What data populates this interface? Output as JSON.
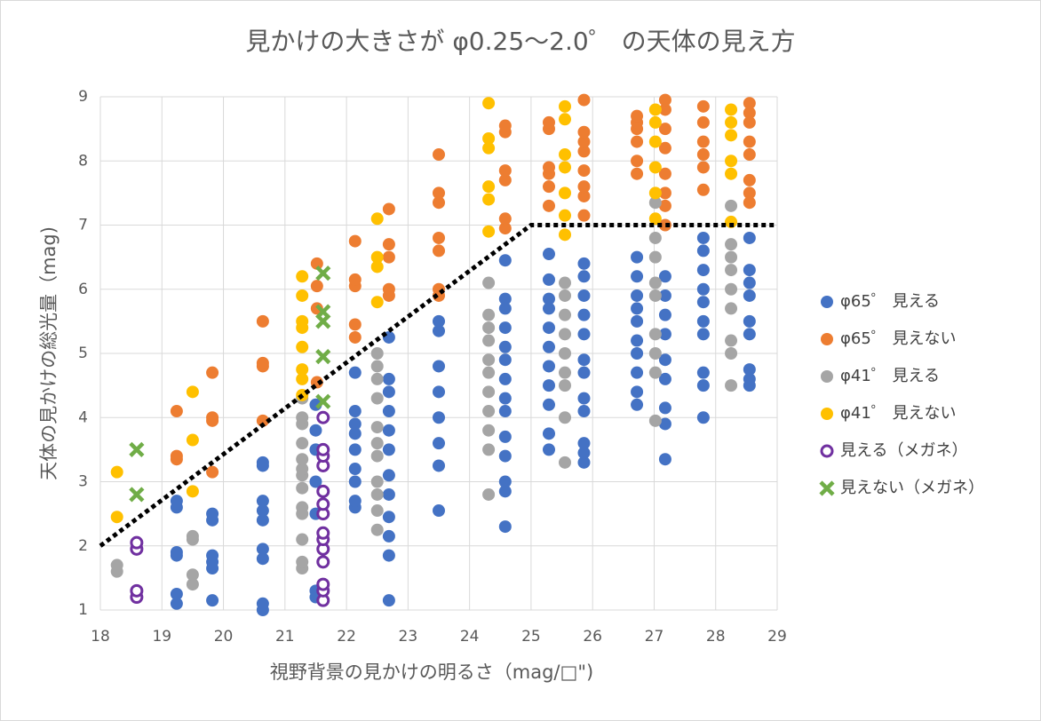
{
  "chart_data": {
    "type": "scatter",
    "title": "見かけの大きさが φ0.25〜2.0゜ の天体の見え方",
    "x_label": "視野背景の見かけの明るさ（mag/□\")",
    "y_label": "天体の見かけの総光量（mag)",
    "xlim": [
      18,
      29
    ],
    "xticks": [
      18,
      19,
      20,
      21,
      22,
      23,
      24,
      25,
      26,
      27,
      28,
      29
    ],
    "ylim": [
      1,
      9
    ],
    "yticks": [
      1,
      2,
      3,
      4,
      5,
      6,
      7,
      8,
      9
    ],
    "grid": true,
    "legend": "right",
    "series": [
      {
        "name": "φ65゜ 見える",
        "color": "#4472c4",
        "marker": "circle",
        "x": [
          19.24,
          19.24,
          19.24,
          19.24,
          19.24,
          19.24,
          19.82,
          19.82,
          19.82,
          19.82,
          19.82,
          19.82,
          20.64,
          20.64,
          20.64,
          20.64,
          20.64,
          20.64,
          20.64,
          20.64,
          20.64,
          21.5,
          21.5,
          21.5,
          21.5,
          21.5,
          21.5,
          21.5,
          22.14,
          22.14,
          22.14,
          22.14,
          22.14,
          22.14,
          22.14,
          22.14,
          22.14,
          22.69,
          22.69,
          22.69,
          22.69,
          22.69,
          22.69,
          22.69,
          22.69,
          22.69,
          22.69,
          22.69,
          22.69,
          23.5,
          23.5,
          23.5,
          23.5,
          23.5,
          23.5,
          23.5,
          23.5,
          24.58,
          24.58,
          24.58,
          24.58,
          24.58,
          24.58,
          24.58,
          24.58,
          24.58,
          24.58,
          24.58,
          24.58,
          24.58,
          24.58,
          25.29,
          25.29,
          25.29,
          25.29,
          25.29,
          25.29,
          25.29,
          25.29,
          25.29,
          25.29,
          25.29,
          25.86,
          25.86,
          25.86,
          25.86,
          25.86,
          25.86,
          25.86,
          25.86,
          25.86,
          25.86,
          25.86,
          25.86,
          26.72,
          26.72,
          26.72,
          26.72,
          26.72,
          26.72,
          26.72,
          26.72,
          26.72,
          26.72,
          27.18,
          27.18,
          27.18,
          27.18,
          27.18,
          27.18,
          27.18,
          27.18,
          27.18,
          27.8,
          27.8,
          27.8,
          27.8,
          27.8,
          27.8,
          27.8,
          27.8,
          27.8,
          27.8,
          28.55,
          28.55,
          28.55,
          28.55,
          28.55,
          28.55,
          28.55,
          28.55,
          28.55
        ],
        "values": [
          1.1,
          1.25,
          1.85,
          1.9,
          2.6,
          2.7,
          1.15,
          1.65,
          1.75,
          1.85,
          2.4,
          2.5,
          1.0,
          1.1,
          1.8,
          1.95,
          2.4,
          2.55,
          2.7,
          3.25,
          3.3,
          1.2,
          1.3,
          2.5,
          3.0,
          3.5,
          3.8,
          4.2,
          2.6,
          2.7,
          3.0,
          3.2,
          3.5,
          3.75,
          3.9,
          4.1,
          4.7,
          1.15,
          1.85,
          2.15,
          2.45,
          2.8,
          3.1,
          3.5,
          3.8,
          4.1,
          4.4,
          4.6,
          5.25,
          2.55,
          3.25,
          3.6,
          4.0,
          4.4,
          4.8,
          5.35,
          5.5,
          2.3,
          2.85,
          3.0,
          3.4,
          3.7,
          4.1,
          4.3,
          4.6,
          4.9,
          5.1,
          5.4,
          5.7,
          5.85,
          6.45,
          3.5,
          3.75,
          4.2,
          4.5,
          4.8,
          5.1,
          5.4,
          5.7,
          5.85,
          6.15,
          6.55,
          3.3,
          3.45,
          3.6,
          4.1,
          4.3,
          4.7,
          4.9,
          5.3,
          5.6,
          5.9,
          6.2,
          6.4,
          4.2,
          4.4,
          4.7,
          5.0,
          5.2,
          5.5,
          5.7,
          5.9,
          6.2,
          6.5,
          3.35,
          3.9,
          4.15,
          4.6,
          4.9,
          5.3,
          5.6,
          5.9,
          6.2,
          4.0,
          4.5,
          4.7,
          5.3,
          5.5,
          5.8,
          6.0,
          6.3,
          6.6,
          6.8,
          4.5,
          4.6,
          4.75,
          5.3,
          5.5,
          5.9,
          6.1,
          6.3,
          6.8
        ]
      },
      {
        "name": "φ65゜ 見えない",
        "color": "#ed7d31",
        "marker": "circle",
        "x": [
          19.24,
          19.24,
          19.24,
          19.82,
          19.82,
          19.82,
          19.82,
          20.64,
          20.64,
          20.64,
          20.64,
          21.52,
          21.52,
          21.52,
          21.52,
          22.14,
          22.14,
          22.14,
          22.14,
          22.14,
          22.69,
          22.69,
          22.69,
          22.69,
          22.69,
          23.5,
          23.5,
          23.5,
          23.5,
          23.5,
          23.5,
          23.5,
          24.58,
          24.58,
          24.58,
          24.58,
          24.58,
          24.58,
          25.29,
          25.29,
          25.29,
          25.29,
          25.29,
          25.29,
          25.86,
          25.86,
          25.86,
          25.86,
          25.86,
          25.86,
          25.86,
          25.86,
          26.72,
          26.72,
          26.72,
          26.72,
          26.72,
          26.72,
          27.18,
          27.18,
          27.18,
          27.18,
          27.18,
          27.18,
          27.18,
          27.18,
          27.8,
          27.8,
          27.8,
          27.8,
          27.8,
          27.8,
          28.55,
          28.55,
          28.55,
          28.55,
          28.55,
          28.55,
          28.55,
          28.55
        ],
        "values": [
          3.35,
          3.4,
          4.1,
          3.15,
          3.95,
          4.0,
          4.7,
          3.95,
          4.8,
          4.85,
          5.5,
          4.55,
          5.7,
          6.05,
          6.4,
          5.25,
          5.45,
          6.05,
          6.15,
          6.75,
          5.9,
          6.0,
          6.5,
          6.7,
          7.25,
          5.9,
          6.0,
          6.6,
          6.8,
          7.35,
          7.5,
          8.1,
          6.95,
          7.1,
          7.7,
          7.85,
          8.45,
          8.55,
          7.3,
          7.6,
          7.8,
          7.9,
          8.5,
          8.6,
          7.15,
          7.45,
          7.6,
          7.85,
          8.15,
          8.3,
          8.45,
          8.95,
          7.8,
          8.0,
          8.3,
          8.5,
          8.6,
          8.7,
          7.0,
          7.3,
          7.5,
          7.8,
          8.2,
          8.5,
          8.8,
          8.95,
          7.55,
          7.9,
          8.1,
          8.3,
          8.6,
          8.85,
          7.35,
          7.5,
          7.7,
          8.1,
          8.3,
          8.6,
          8.75,
          8.9
        ]
      },
      {
        "name": "φ41゜ 見える",
        "color": "#a5a5a5",
        "marker": "circle",
        "x": [
          18.27,
          18.27,
          19.5,
          19.5,
          19.5,
          19.5,
          21.28,
          21.28,
          21.28,
          21.28,
          21.28,
          21.28,
          21.28,
          21.28,
          21.28,
          21.28,
          21.28,
          21.28,
          21.28,
          22.5,
          22.5,
          22.5,
          22.5,
          22.5,
          22.5,
          22.5,
          22.5,
          22.5,
          22.5,
          22.5,
          24.31,
          24.31,
          24.31,
          24.31,
          24.31,
          24.31,
          24.31,
          24.31,
          24.31,
          24.31,
          24.31,
          25.55,
          25.55,
          25.55,
          25.55,
          25.55,
          25.55,
          25.55,
          25.55,
          25.55,
          27.02,
          27.02,
          27.02,
          27.02,
          27.02,
          27.02,
          27.02,
          27.02,
          27.02,
          28.25,
          28.25,
          28.25,
          28.25,
          28.25,
          28.25,
          28.25,
          28.25,
          28.25
        ],
        "values": [
          1.6,
          1.7,
          1.4,
          1.55,
          2.1,
          2.15,
          1.65,
          1.75,
          2.1,
          2.5,
          2.6,
          2.9,
          3.1,
          3.2,
          3.35,
          3.6,
          3.9,
          4.0,
          4.3,
          2.25,
          2.55,
          2.8,
          3.0,
          3.4,
          3.6,
          3.85,
          4.3,
          4.6,
          4.8,
          5.0,
          2.8,
          3.5,
          3.8,
          4.1,
          4.4,
          4.7,
          4.9,
          5.2,
          5.4,
          5.6,
          6.1,
          3.3,
          4.0,
          4.5,
          4.7,
          5.0,
          5.3,
          5.6,
          5.9,
          6.1,
          3.95,
          4.7,
          5.0,
          5.3,
          5.9,
          6.1,
          6.5,
          6.8,
          7.35,
          4.5,
          5.0,
          5.2,
          5.7,
          6.0,
          6.3,
          6.5,
          6.7,
          7.3
        ]
      },
      {
        "name": "φ41゜ 見えない",
        "color": "#ffc000",
        "marker": "circle",
        "x": [
          18.27,
          18.27,
          19.5,
          19.5,
          19.5,
          21.28,
          21.28,
          21.28,
          21.28,
          21.28,
          21.28,
          21.28,
          21.28,
          22.5,
          22.5,
          22.5,
          22.5,
          24.31,
          24.31,
          24.31,
          24.31,
          24.31,
          24.31,
          25.55,
          25.55,
          25.55,
          25.55,
          25.55,
          25.55,
          25.55,
          27.02,
          27.02,
          27.02,
          27.02,
          27.02,
          27.02,
          28.25,
          28.25,
          28.25,
          28.25,
          28.25,
          28.25
        ],
        "values": [
          2.45,
          3.15,
          2.85,
          3.65,
          4.4,
          4.35,
          4.6,
          4.75,
          5.1,
          5.4,
          5.5,
          5.9,
          6.2,
          5.8,
          6.35,
          6.5,
          7.1,
          6.9,
          7.4,
          7.6,
          8.2,
          8.35,
          8.9,
          6.85,
          7.15,
          7.5,
          7.9,
          8.1,
          8.65,
          8.85,
          7.1,
          7.5,
          7.9,
          8.3,
          8.6,
          8.8,
          7.05,
          7.8,
          8.0,
          8.4,
          8.6,
          8.8
        ]
      },
      {
        "name": "見える（メガネ）",
        "color": "#7030a0",
        "marker": "ring",
        "x": [
          18.59,
          18.59,
          18.59,
          18.59,
          21.62,
          21.62,
          21.62,
          21.62,
          21.62,
          21.62,
          21.62,
          21.62,
          21.62,
          21.62,
          21.62,
          21.62,
          21.62,
          21.62
        ],
        "values": [
          1.2,
          1.3,
          1.95,
          2.05,
          1.15,
          1.3,
          1.4,
          1.75,
          1.95,
          2.1,
          2.2,
          2.5,
          2.65,
          2.85,
          3.25,
          3.4,
          3.5,
          4.0
        ]
      },
      {
        "name": "見えない（メガネ）",
        "color": "#70ad47",
        "marker": "x",
        "x": [
          18.59,
          18.59,
          21.62,
          21.62,
          21.62,
          21.62,
          21.62
        ],
        "values": [
          2.8,
          3.5,
          4.25,
          4.95,
          5.5,
          5.65,
          6.25
        ]
      }
    ],
    "boundary": {
      "color": "#000000",
      "x": [
        18,
        25,
        29
      ],
      "values": [
        2,
        7,
        7
      ]
    }
  }
}
